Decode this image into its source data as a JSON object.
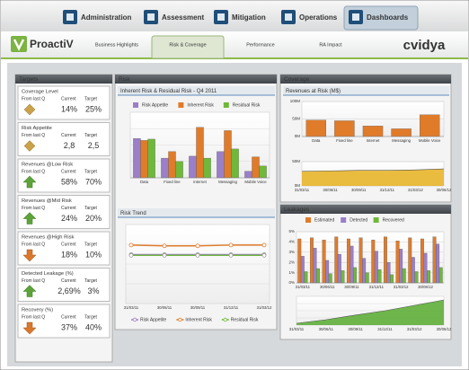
{
  "nav": {
    "tabs": [
      "Administration",
      "Assessment",
      "Mitigation",
      "Operations",
      "Dashboards"
    ],
    "active_tab": 4
  },
  "header": {
    "logo": "ProactiV",
    "subtabs": [
      "Business Highlights",
      "Risk & Coverage",
      "Performance",
      "RA Impact"
    ],
    "active_subtab": 1,
    "brand": "cvidya"
  },
  "panels": {
    "risk": "Risk",
    "coverage": "Coverage",
    "leakages": "Leakages"
  },
  "targets": {
    "title": "Targets",
    "column_headers": [
      "From last Q",
      "Current",
      "Target"
    ],
    "cards": [
      {
        "label": "Coverage Level",
        "current": "14%",
        "target": "25%",
        "trend": "neutral"
      },
      {
        "label": "Risk Appetite",
        "current": "2,8",
        "target": "2,5",
        "trend": "neutral"
      },
      {
        "label": "Revenues @Low Risk",
        "current": "58%",
        "target": "70%",
        "trend": "up"
      },
      {
        "label": "Revenues @Mid Risk",
        "current": "24%",
        "target": "20%",
        "trend": "up"
      },
      {
        "label": "Revenues @High Risk",
        "current": "18%",
        "target": "10%",
        "trend": "down"
      },
      {
        "label": "Detected Leakage (%)",
        "current": "2,69%",
        "target": "3%",
        "trend": "up"
      },
      {
        "label": "Recovery (%)",
        "current": "37%",
        "target": "40%",
        "trend": "down"
      }
    ]
  },
  "chart_data": [
    {
      "type": "bar",
      "title": "Inherent Risk & Residual Risk - Q4 2011",
      "legend": "top",
      "categories": [
        "Data",
        "Fixed line",
        "Internet",
        "Messaging",
        "Mobile Voice"
      ],
      "series": [
        {
          "name": "Risk Appetite",
          "color": "#9b7fc8",
          "values": [
            60,
            30,
            33,
            40,
            10
          ]
        },
        {
          "name": "Inherent Risk",
          "color": "#e07b2a",
          "values": [
            57,
            40,
            77,
            72,
            32
          ]
        },
        {
          "name": "Residual Risk",
          "color": "#6fb83a",
          "values": [
            59,
            25,
            30,
            44,
            18
          ]
        }
      ],
      "ylim": [
        0,
        100
      ],
      "grid": true
    },
    {
      "type": "line",
      "title": "Risk Trend",
      "legend": "bottom",
      "categories": [
        "31/03/11",
        "30/06/11",
        "30/09/11",
        "31/12/11",
        "31/03/12"
      ],
      "series": [
        {
          "name": "Risk Appetite",
          "color": "#9b7fc8",
          "values": [
            62,
            62,
            62,
            62,
            62
          ]
        },
        {
          "name": "Inherent Risk",
          "color": "#e07b2a",
          "values": [
            74,
            73,
            73,
            74,
            74
          ]
        },
        {
          "name": "Residual Risk",
          "color": "#6fb83a",
          "values": [
            61,
            61,
            61,
            61,
            61
          ]
        }
      ],
      "ylim": [
        0,
        100
      ],
      "grid": true
    },
    {
      "type": "bar",
      "title": "Revenues at Risk (M$)",
      "categories": [
        "Data",
        "Fixed line",
        "Internet",
        "Messaging",
        "Mobile Voice"
      ],
      "values": [
        47,
        45,
        30,
        22,
        62
      ],
      "color": "#e07b2a",
      "ylim": [
        0,
        100
      ],
      "yticks": [
        {
          "value": 0,
          "label": "0M"
        },
        {
          "value": 50,
          "label": "50M"
        },
        {
          "value": 100,
          "label": "100M"
        }
      ],
      "grid": true
    },
    {
      "type": "area",
      "categories": [
        "31/03/11",
        "30/06/11",
        "30/09/11",
        "31/12/11",
        "31/03/12",
        "30/06/12"
      ],
      "values": [
        30,
        31,
        32,
        32,
        33,
        35
      ],
      "color": "#e8b52a",
      "ylim": [
        0,
        50
      ],
      "yticks": [
        {
          "value": 0,
          "label": "0M"
        },
        {
          "value": 50,
          "label": "50M"
        }
      ],
      "grid": true
    },
    {
      "type": "bar",
      "legend": "top",
      "categories": [
        "31/03/11",
        null,
        "30/06/11",
        null,
        "30/09/11",
        null,
        "31/12/11",
        null,
        "31/03/12",
        null,
        "30/06/12",
        null
      ],
      "series": [
        {
          "name": "Estimated",
          "color": "#e07b2a",
          "values": [
            4.3,
            4.4,
            4.2,
            4.5,
            4.3,
            4.4,
            4.2,
            4.5,
            4.1,
            4.4,
            4.3,
            4.5
          ]
        },
        {
          "name": "Detected",
          "color": "#9b7fc8",
          "values": [
            2.6,
            3.4,
            2.2,
            2.8,
            3.6,
            2.4,
            3.1,
            2.0,
            3.3,
            2.5,
            2.9,
            3.8
          ]
        },
        {
          "name": "Recovered",
          "color": "#6fb83a",
          "values": [
            1.1,
            1.4,
            0.9,
            1.2,
            1.5,
            1.0,
            1.3,
            0.8,
            1.4,
            1.1,
            1.2,
            1.5
          ]
        }
      ],
      "ylim": [
        0,
        5
      ],
      "yticks": [
        {
          "value": 0,
          "label": "0%"
        },
        {
          "value": 1,
          "label": "1%"
        },
        {
          "value": 2,
          "label": "2%"
        },
        {
          "value": 3,
          "label": "3%"
        },
        {
          "value": 4,
          "label": "4%"
        },
        {
          "value": 5,
          "label": "5%"
        }
      ],
      "grid": true
    },
    {
      "type": "area",
      "categories": [
        "31/03/11",
        "30/06/11",
        "30/09/11",
        "31/12/11",
        "31/03/12",
        "30/06/12"
      ],
      "values": [
        5,
        15,
        28,
        40,
        55,
        70
      ],
      "color": "#5fae3a",
      "ylim": [
        0,
        80
      ],
      "grid": true
    }
  ]
}
